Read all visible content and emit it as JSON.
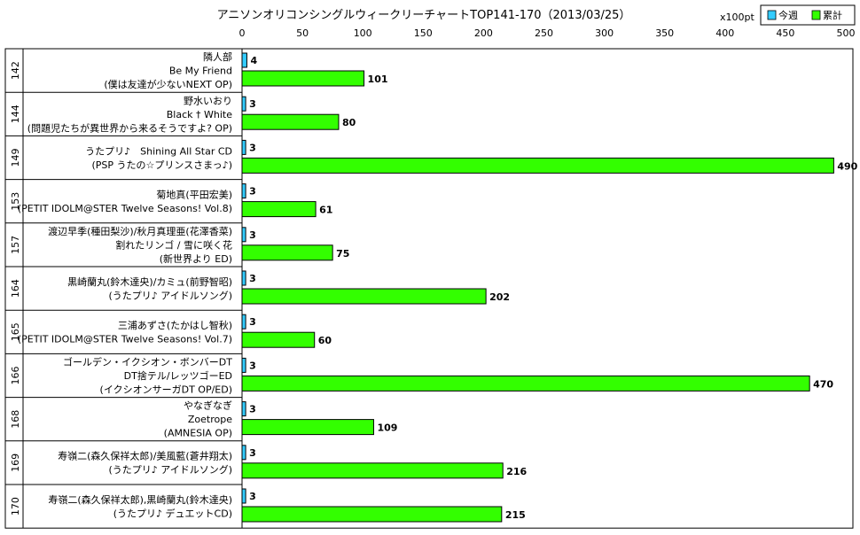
{
  "chart_data": {
    "type": "bar",
    "title": "アニソンオリコンシングルウィークリーチャートTOP141-170（2013/03/25）",
    "unit": "x100pt",
    "xlim": [
      0,
      500
    ],
    "ticks": [
      0,
      50,
      100,
      150,
      200,
      250,
      300,
      350,
      400,
      450,
      500
    ],
    "series": [
      {
        "name": "今週",
        "color": "#33ccff"
      },
      {
        "name": "累計",
        "color": "#33ff00"
      }
    ],
    "rows": [
      {
        "rank": "142",
        "label": [
          "隣人部",
          "Be My Friend",
          "(僕は友達が少ないNEXT OP)"
        ],
        "week": 4,
        "total": 101
      },
      {
        "rank": "144",
        "label": [
          "野水いおり",
          "Black † White",
          "(問題児たちが異世界から来るそうですよ? OP)"
        ],
        "week": 3,
        "total": 80
      },
      {
        "rank": "149",
        "label": [
          "うたプリ♪　Shining All Star CD",
          "(PSP うたの☆プリンスさまっ♪)"
        ],
        "week": 3,
        "total": 490
      },
      {
        "rank": "153",
        "label": [
          "菊地真(平田宏美)",
          "(PETIT IDOLM@STER Twelve Seasons! Vol.8)"
        ],
        "week": 3,
        "total": 61
      },
      {
        "rank": "157",
        "label": [
          "渡辺早季(種田梨沙)/秋月真理亜(花澤香菜)",
          "割れたリンゴ / 雪に咲く花",
          "(新世界より ED)"
        ],
        "week": 3,
        "total": 75
      },
      {
        "rank": "164",
        "label": [
          "黒崎蘭丸(鈴木達央)/カミュ(前野智昭)",
          "(うたプリ♪ アイドルソング)"
        ],
        "week": 3,
        "total": 202
      },
      {
        "rank": "165",
        "label": [
          "三浦あずさ(たかはし智秋)",
          "(PETIT IDOLM@STER Twelve Seasons! Vol.7)"
        ],
        "week": 3,
        "total": 60
      },
      {
        "rank": "166",
        "label": [
          "ゴールデン・イクシオン・ボンバーDT",
          "DT捨テル/レッツゴーED",
          "(イクシオンサーガDT OP/ED)"
        ],
        "week": 3,
        "total": 470
      },
      {
        "rank": "168",
        "label": [
          "やなぎなぎ",
          "Zoetrope",
          "(AMNESIA OP)"
        ],
        "week": 3,
        "total": 109
      },
      {
        "rank": "169",
        "label": [
          "寿嶺二(森久保祥太郎)/美風藍(蒼井翔太)",
          "(うたプリ♪ アイドルソング)"
        ],
        "week": 3,
        "total": 216
      },
      {
        "rank": "170",
        "label": [
          "寿嶺二(森久保祥太郎),黒崎蘭丸(鈴木達央)",
          "(うたプリ♪ デュエットCD)"
        ],
        "week": 3,
        "total": 215
      }
    ]
  }
}
